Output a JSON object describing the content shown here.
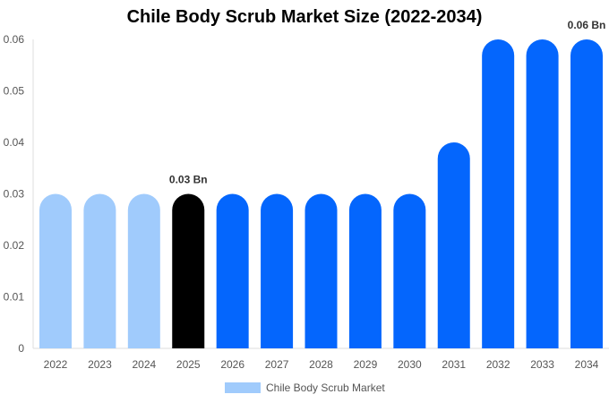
{
  "chart_data": {
    "type": "bar",
    "title": "Chile Body Scrub Market Size (2022-2034)",
    "categories": [
      "2022",
      "2023",
      "2024",
      "2025",
      "2026",
      "2027",
      "2028",
      "2029",
      "2030",
      "2031",
      "2032",
      "2033",
      "2034"
    ],
    "series": [
      {
        "name": "Chile Body Scrub Market",
        "values": [
          0.03,
          0.03,
          0.03,
          0.03,
          0.03,
          0.03,
          0.03,
          0.03,
          0.03,
          0.04,
          0.06,
          0.06,
          0.06
        ]
      }
    ],
    "ylim": [
      0,
      0.06
    ],
    "yticks": [
      "0",
      "0.01",
      "0.02",
      "0.03",
      "0.04",
      "0.05",
      "0.06"
    ],
    "xlabel": "",
    "ylabel": "",
    "annotations": [
      {
        "category": "2025",
        "text": "0.03 Bn"
      },
      {
        "category": "2034",
        "text": "0.06 Bn"
      }
    ],
    "colors": {
      "historical": "#a0cbfc",
      "current": "#000000",
      "forecast": "#0466fd"
    },
    "bar_color_groups": [
      "historical",
      "historical",
      "historical",
      "current",
      "forecast",
      "forecast",
      "forecast",
      "forecast",
      "forecast",
      "forecast",
      "forecast",
      "forecast",
      "forecast"
    ],
    "legend_position": "bottom-center",
    "grid": false
  }
}
